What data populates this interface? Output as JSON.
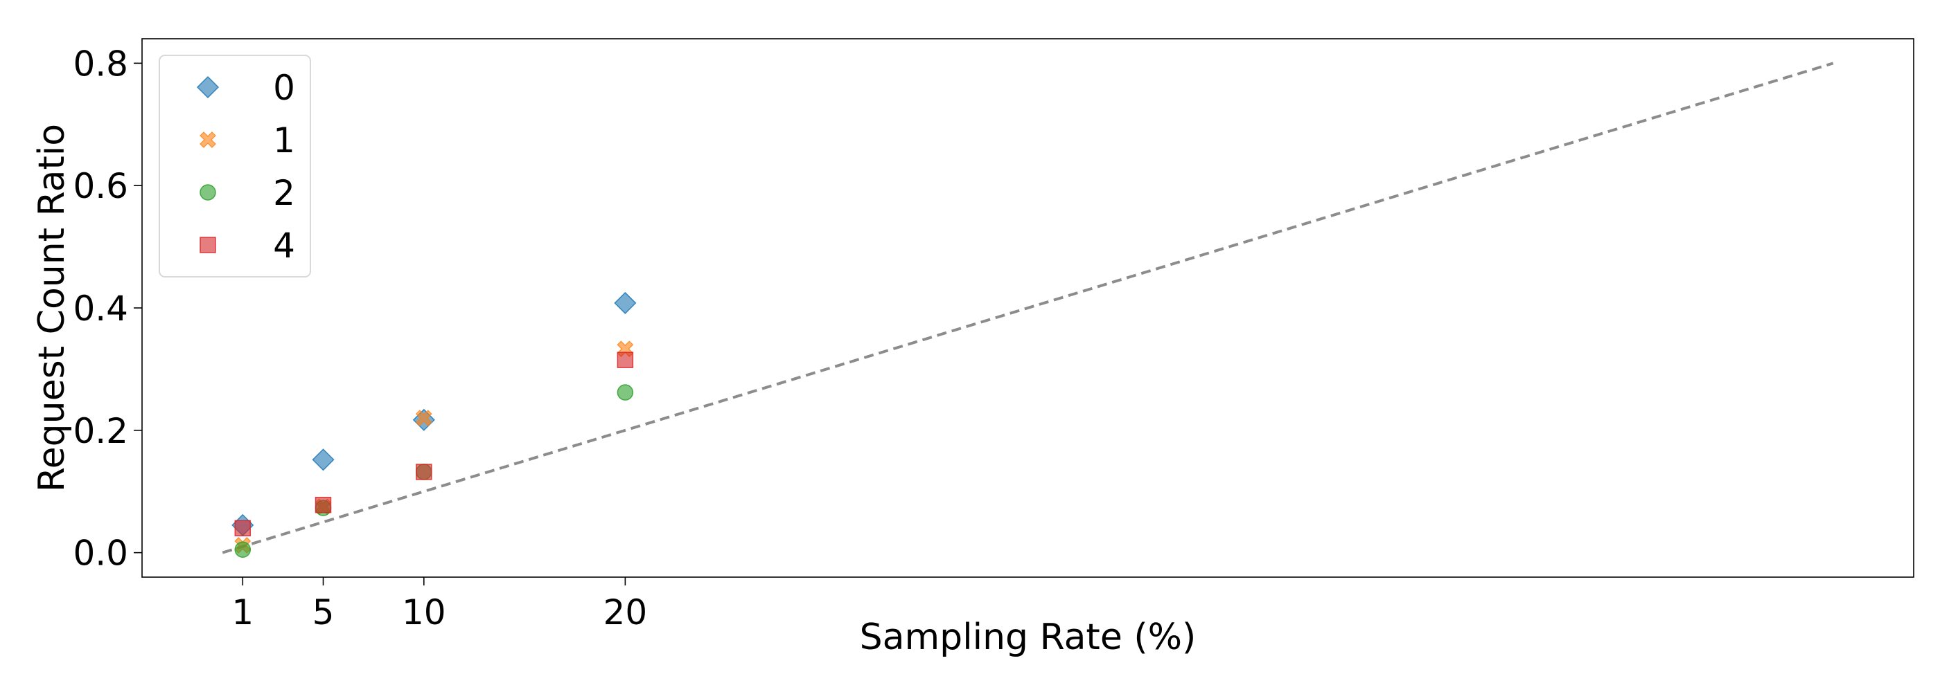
{
  "chart_data": {
    "type": "scatter",
    "title": "",
    "xlabel": "Sampling Rate (%)",
    "ylabel": "Request Count Ratio",
    "xticks": [
      1,
      5,
      10,
      20
    ],
    "yticks": [
      "0.0",
      "0.2",
      "0.4",
      "0.6",
      "0.8"
    ],
    "xlim": [
      -4,
      84
    ],
    "ylim": [
      -0.04,
      0.84
    ],
    "grid": false,
    "legend_position": "top-left",
    "reference_line": {
      "style": "dashed",
      "color": "#8c8c8c",
      "points": [
        [
          0,
          0.0
        ],
        [
          80,
          0.8
        ]
      ]
    },
    "series": [
      {
        "name": "0",
        "marker": "diamond",
        "color": "#1f77b4",
        "x": [
          1,
          5,
          10,
          20
        ],
        "y": [
          0.045,
          0.152,
          0.217,
          0.408
        ]
      },
      {
        "name": "1",
        "marker": "x",
        "color": "#ff7f0e",
        "x": [
          1,
          5,
          10,
          20
        ],
        "y": [
          0.012,
          0.075,
          0.22,
          0.333
        ]
      },
      {
        "name": "2",
        "marker": "circle",
        "color": "#2ca02c",
        "x": [
          1,
          5,
          10,
          20
        ],
        "y": [
          0.005,
          0.073,
          0.132,
          0.262
        ]
      },
      {
        "name": "4",
        "marker": "square",
        "color": "#d62728",
        "x": [
          1,
          5,
          10,
          20
        ],
        "y": [
          0.04,
          0.078,
          0.132,
          0.315
        ]
      }
    ]
  }
}
